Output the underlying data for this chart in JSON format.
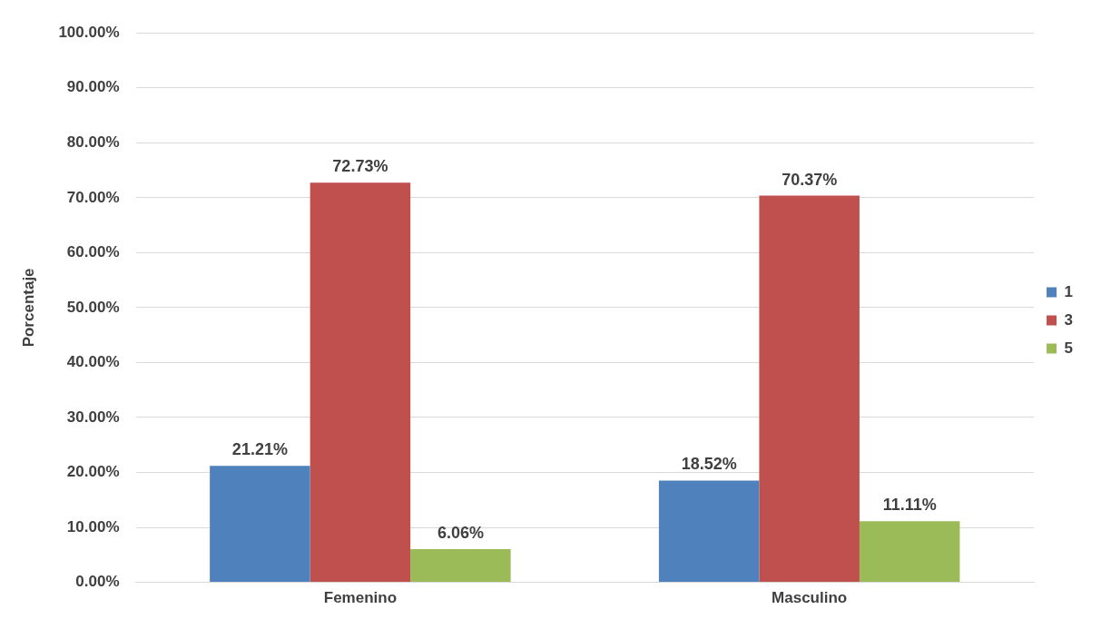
{
  "chart_data": {
    "type": "bar",
    "ylabel": "Porcentaje",
    "categories": [
      "Femenino",
      "Masculino"
    ],
    "series": [
      {
        "name": "1",
        "color": "#4f81bd",
        "values": [
          21.21,
          18.52
        ],
        "value_labels": [
          "21.21%",
          "18.52%"
        ]
      },
      {
        "name": "3",
        "color": "#c0504d",
        "values": [
          72.73,
          70.37
        ],
        "value_labels": [
          "72.73%",
          "70.37%"
        ]
      },
      {
        "name": "5",
        "color": "#9bbb59",
        "values": [
          6.06,
          11.11
        ],
        "value_labels": [
          "6.06%",
          "11.11%"
        ]
      }
    ],
    "ylim": [
      0,
      100
    ],
    "yticks": [
      {
        "value": 0,
        "label": "0.00%"
      },
      {
        "value": 10,
        "label": "10.00%"
      },
      {
        "value": 20,
        "label": "20.00%"
      },
      {
        "value": 30,
        "label": "30.00%"
      },
      {
        "value": 40,
        "label": "40.00%"
      },
      {
        "value": 50,
        "label": "50.00%"
      },
      {
        "value": 60,
        "label": "60.00%"
      },
      {
        "value": 70,
        "label": "70.00%"
      },
      {
        "value": 80,
        "label": "80.00%"
      },
      {
        "value": 90,
        "label": "90.00%"
      },
      {
        "value": 100,
        "label": "100.00%"
      }
    ],
    "grid": "y",
    "legend": "right"
  }
}
